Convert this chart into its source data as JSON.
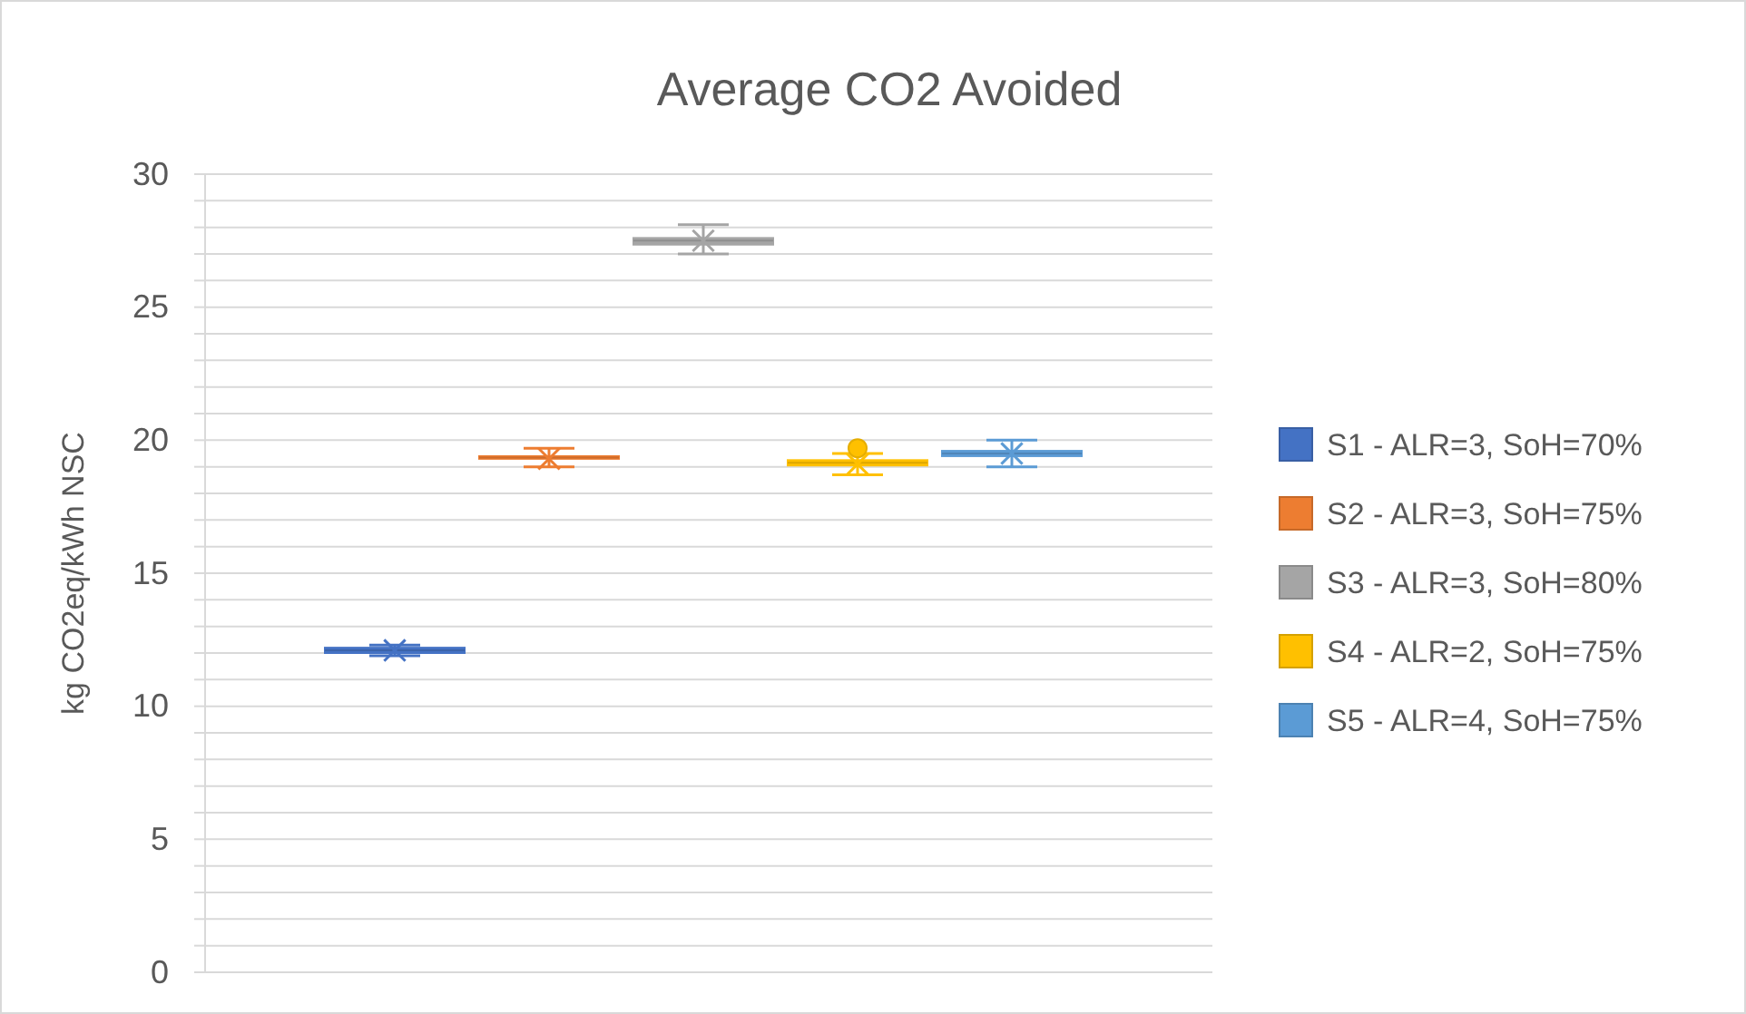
{
  "chart_data": {
    "type": "box",
    "title": "Average CO2 Avoided",
    "ylabel": "kg CO2eq/kWh NSC",
    "categories": [
      null
    ],
    "ylim": [
      0,
      30
    ],
    "yticks": [
      0,
      {
        "value": 1,
        "label": null
      },
      {
        "value": 2,
        "label": null
      },
      {
        "value": 3,
        "label": null
      },
      {
        "value": 4,
        "label": null
      },
      5,
      {
        "value": 6,
        "label": null
      },
      {
        "value": 7,
        "label": null
      },
      {
        "value": 8,
        "label": null
      },
      {
        "value": 9,
        "label": null
      },
      10,
      {
        "value": 11,
        "label": null
      },
      {
        "value": 12,
        "label": null
      },
      {
        "value": 13,
        "label": null
      },
      {
        "value": 14,
        "label": null
      },
      15,
      {
        "value": 16,
        "label": null
      },
      {
        "value": 17,
        "label": null
      },
      {
        "value": 18,
        "label": null
      },
      {
        "value": 19,
        "label": null
      },
      20,
      {
        "value": 21,
        "label": null
      },
      {
        "value": 22,
        "label": null
      },
      {
        "value": 23,
        "label": null
      },
      {
        "value": 24,
        "label": null
      },
      25,
      {
        "value": 26,
        "label": null
      },
      {
        "value": 27,
        "label": null
      },
      {
        "value": 28,
        "label": null
      },
      {
        "value": 29,
        "label": null
      },
      30
    ],
    "grid": "y",
    "legend": "right",
    "marker": "cross",
    "series": [
      {
        "name": "S1 - ALR=3, SoH=70%",
        "color": "#4472c4",
        "boxes": [
          {
            "low": 11.9,
            "q1": 12.0,
            "median": 12.1,
            "q3": 12.2,
            "high": 12.3,
            "mean": 12.1
          }
        ]
      },
      {
        "name": "S2 - ALR=3, SoH=75%",
        "color": "#ed7d31",
        "boxes": [
          {
            "low": 19.0,
            "q1": 19.3,
            "median": 19.35,
            "q3": 19.4,
            "high": 19.7,
            "mean": 19.3
          }
        ]
      },
      {
        "name": "S3 - ALR=3, SoH=80%",
        "color": "#a5a5a5",
        "boxes": [
          {
            "low": 27.0,
            "q1": 27.35,
            "median": 27.5,
            "q3": 27.6,
            "high": 28.1,
            "mean": 27.5
          }
        ]
      },
      {
        "name": "S4 - ALR=2, SoH=75%",
        "color": "#ffc000",
        "boxes": [
          {
            "low": 18.7,
            "q1": 19.05,
            "median": 19.15,
            "q3": 19.25,
            "high": 19.5,
            "mean": 19.1,
            "outliers": [
              19.7
            ]
          }
        ]
      },
      {
        "name": "S5 - ALR=4, SoH=75%",
        "color": "#5b9bd5",
        "boxes": [
          {
            "low": 19.0,
            "q1": 19.4,
            "median": 19.5,
            "q3": 19.6,
            "high": 20.0,
            "mean": 19.5
          }
        ]
      }
    ]
  }
}
